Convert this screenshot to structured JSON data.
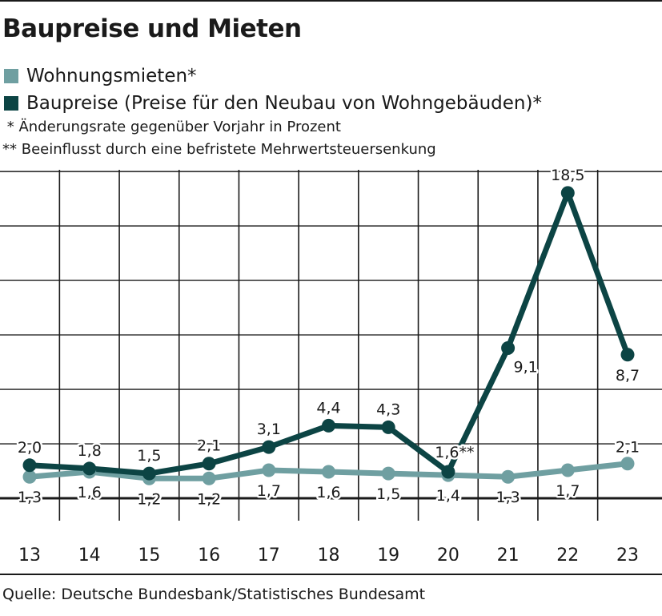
{
  "title": "Baupreise und Mieten",
  "legend": [
    {
      "label": "Wohnungsmieten*",
      "color": "#6f9fa1"
    },
    {
      "label": "Baupreise (Preise für den Neubau von Wohngebäuden)*",
      "color": "#0c4444"
    }
  ],
  "notes": [
    " * Änderungsrate gegenüber Vorjahr in Prozent",
    "** Beeinflusst durch eine befristete Mehrwertsteuersenkung"
  ],
  "source": "Quelle: Deutsche Bundesbank/Statistisches Bundesamt",
  "chart_data": {
    "type": "line",
    "title": "Baupreise und Mieten",
    "x": [
      "13",
      "14",
      "15",
      "16",
      "17",
      "18",
      "19",
      "20",
      "21",
      "22",
      "23"
    ],
    "ylim": [
      -1,
      20
    ],
    "grid": true,
    "legend_position": "top-left",
    "series": [
      {
        "name": "Wohnungsmieten*",
        "color": "#6f9fa1",
        "values": [
          1.3,
          1.6,
          1.2,
          1.2,
          1.7,
          1.6,
          1.5,
          1.4,
          1.3,
          1.7,
          2.1
        ],
        "labels": [
          "1,3",
          "1,6",
          "1,2",
          "1,2",
          "1,7",
          "1,6",
          "1,5",
          "1,4",
          "1,3",
          "1,7",
          "2,1"
        ]
      },
      {
        "name": "Baupreise (Preise für den Neubau von Wohngebäuden)*",
        "color": "#0c4444",
        "values": [
          2.0,
          1.8,
          1.5,
          2.1,
          3.1,
          4.4,
          4.3,
          1.6,
          9.1,
          18.5,
          8.7
        ],
        "labels": [
          "2,0",
          "1,8",
          "1,5",
          "2,1",
          "3,1",
          "4,4",
          "4,3",
          "1,6**",
          "9,1",
          "18,5",
          "8,7"
        ]
      }
    ]
  }
}
